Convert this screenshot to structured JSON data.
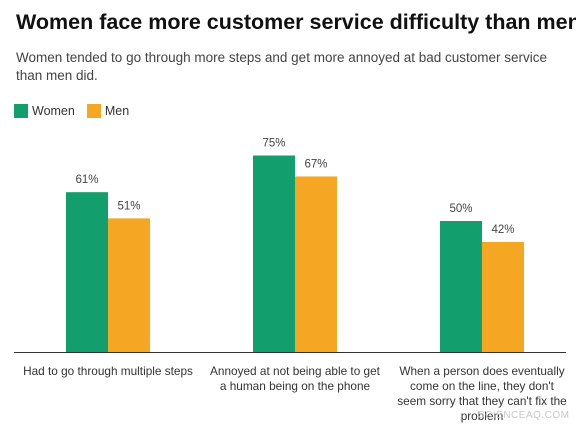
{
  "title": "Women face more customer service difficulty than men",
  "subtitle": "Women tended to go through more steps and get more annoyed at bad customer service than men did.",
  "colors": {
    "women": "#139e6e",
    "men": "#f5a623",
    "axis": "#333333"
  },
  "watermark": "SCIENCEAQ.COM",
  "chart_data": {
    "type": "bar",
    "categories": [
      "Had to go through multiple steps",
      "Annoyed at not being able to get a human being on the phone",
      "When a person does eventually come on the line, they don't seem sorry that they can't fix the problem"
    ],
    "series": [
      {
        "name": "Women",
        "values": [
          61,
          75,
          50
        ],
        "labels": [
          "61%",
          "75%",
          "50%"
        ]
      },
      {
        "name": "Men",
        "values": [
          51,
          67,
          42
        ],
        "labels": [
          "51%",
          "67%",
          "42%"
        ]
      }
    ],
    "ylim": [
      0,
      100
    ],
    "legend": "top-left",
    "grid": false
  }
}
